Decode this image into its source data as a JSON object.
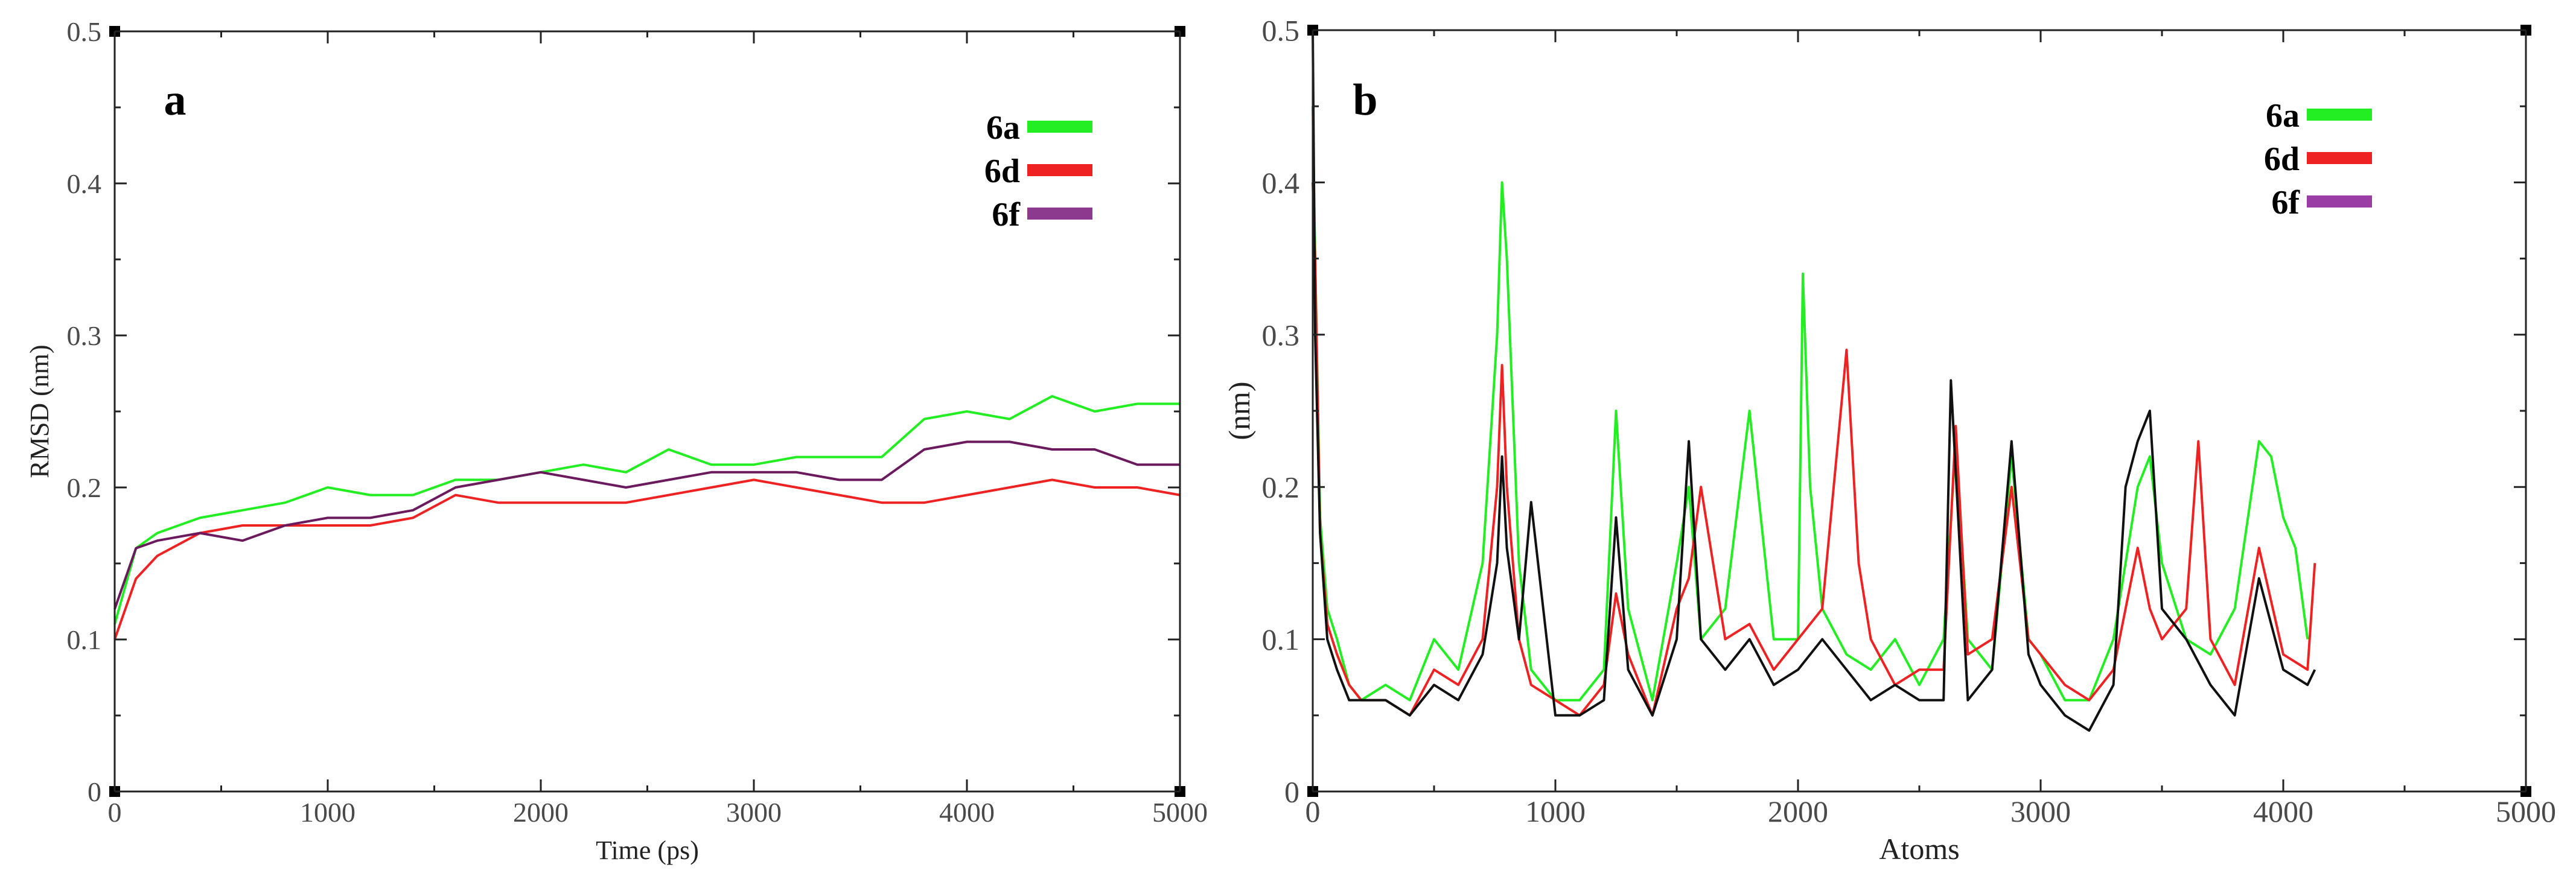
{
  "charts": [
    {
      "panel_label": "a",
      "chart_data": {
        "type": "line",
        "title": "",
        "xlabel": "Time (ps)",
        "ylabel": "RMSD (nm)",
        "xlim": [
          0,
          5000
        ],
        "ylim": [
          0,
          0.5
        ],
        "xticks": [
          0,
          1000,
          2000,
          3000,
          4000,
          5000
        ],
        "yticks": [
          0,
          0.1,
          0.2,
          0.3,
          0.4,
          0.5
        ],
        "xtick_labels": [
          "0",
          "1000",
          "2000",
          "3000",
          "4000",
          "5000"
        ],
        "ytick_labels": [
          "0",
          "0.1",
          "0.2",
          "0.3",
          "0.4",
          "0.5"
        ],
        "legend_position": "top-right",
        "series": [
          {
            "name": "6a",
            "color": "#22ee22",
            "x": [
              0,
              100,
              200,
              400,
              600,
              800,
              1000,
              1200,
              1400,
              1600,
              1800,
              2000,
              2200,
              2400,
              2600,
              2800,
              3000,
              3200,
              3400,
              3600,
              3800,
              4000,
              4200,
              4400,
              4600,
              4800,
              5000
            ],
            "y": [
              0.11,
              0.16,
              0.17,
              0.18,
              0.185,
              0.19,
              0.2,
              0.195,
              0.195,
              0.205,
              0.205,
              0.21,
              0.215,
              0.21,
              0.225,
              0.215,
              0.215,
              0.22,
              0.22,
              0.22,
              0.245,
              0.25,
              0.245,
              0.26,
              0.25,
              0.255,
              0.255
            ]
          },
          {
            "name": "6d",
            "color": "#ee2222",
            "x": [
              0,
              100,
              200,
              400,
              600,
              800,
              1000,
              1200,
              1400,
              1600,
              1800,
              2000,
              2200,
              2400,
              2600,
              2800,
              3000,
              3200,
              3400,
              3600,
              3800,
              4000,
              4200,
              4400,
              4600,
              4800,
              5000
            ],
            "y": [
              0.1,
              0.14,
              0.155,
              0.17,
              0.175,
              0.175,
              0.175,
              0.175,
              0.18,
              0.195,
              0.19,
              0.19,
              0.19,
              0.19,
              0.195,
              0.2,
              0.205,
              0.2,
              0.195,
              0.19,
              0.19,
              0.195,
              0.2,
              0.205,
              0.2,
              0.2,
              0.195
            ]
          },
          {
            "name": "6f",
            "color": "#6b1a5e",
            "x": [
              0,
              100,
              200,
              400,
              600,
              800,
              1000,
              1200,
              1400,
              1600,
              1800,
              2000,
              2200,
              2400,
              2600,
              2800,
              3000,
              3200,
              3400,
              3600,
              3800,
              4000,
              4200,
              4400,
              4600,
              4800,
              5000
            ],
            "y": [
              0.12,
              0.16,
              0.165,
              0.17,
              0.165,
              0.175,
              0.18,
              0.18,
              0.185,
              0.2,
              0.205,
              0.21,
              0.205,
              0.2,
              0.205,
              0.21,
              0.21,
              0.21,
              0.205,
              0.205,
              0.225,
              0.23,
              0.23,
              0.225,
              0.225,
              0.215,
              0.215
            ]
          }
        ]
      }
    },
    {
      "panel_label": "b",
      "chart_data": {
        "type": "line",
        "title": "",
        "xlabel": "Atoms",
        "ylabel": "(nm)",
        "xlim": [
          0,
          5000
        ],
        "ylim": [
          0,
          0.5
        ],
        "xticks": [
          0,
          1000,
          2000,
          3000,
          4000,
          5000
        ],
        "yticks": [
          0,
          0.1,
          0.2,
          0.3,
          0.4,
          0.5
        ],
        "xtick_labels": [
          "0",
          "1000",
          "2000",
          "3000",
          "4000",
          "5000"
        ],
        "ytick_labels": [
          "0",
          "0.1",
          "0.2",
          "0.3",
          "0.4",
          "0.5"
        ],
        "legend_position": "top-right",
        "series": [
          {
            "name": "6a",
            "color": "#22ee22",
            "x": [
              0,
              10,
              30,
              60,
              100,
              150,
              200,
              300,
              400,
              500,
              600,
              700,
              760,
              780,
              800,
              850,
              900,
              1000,
              1100,
              1200,
              1250,
              1300,
              1400,
              1500,
              1550,
              1600,
              1700,
              1800,
              1900,
              2000,
              2020,
              2050,
              2100,
              2200,
              2300,
              2400,
              2500,
              2600,
              2650,
              2700,
              2800,
              2880,
              2950,
              3000,
              3100,
              3200,
              3300,
              3400,
              3450,
              3500,
              3600,
              3700,
              3800,
              3900,
              3950,
              4000,
              4050,
              4100
            ],
            "y": [
              0.45,
              0.35,
              0.18,
              0.12,
              0.1,
              0.07,
              0.06,
              0.07,
              0.06,
              0.1,
              0.08,
              0.15,
              0.3,
              0.4,
              0.35,
              0.15,
              0.08,
              0.06,
              0.06,
              0.08,
              0.25,
              0.12,
              0.06,
              0.15,
              0.2,
              0.1,
              0.12,
              0.25,
              0.1,
              0.1,
              0.34,
              0.2,
              0.12,
              0.09,
              0.08,
              0.1,
              0.07,
              0.1,
              0.23,
              0.1,
              0.08,
              0.22,
              0.1,
              0.09,
              0.06,
              0.06,
              0.1,
              0.2,
              0.22,
              0.15,
              0.1,
              0.09,
              0.12,
              0.23,
              0.22,
              0.18,
              0.16,
              0.1
            ]
          },
          {
            "name": "6d",
            "color": "#ee2222",
            "x": [
              0,
              10,
              30,
              60,
              100,
              150,
              200,
              300,
              400,
              500,
              600,
              700,
              760,
              780,
              800,
              850,
              900,
              1000,
              1100,
              1200,
              1250,
              1300,
              1400,
              1500,
              1550,
              1600,
              1700,
              1800,
              1900,
              2000,
              2100,
              2200,
              2250,
              2300,
              2400,
              2500,
              2600,
              2650,
              2700,
              2800,
              2880,
              2950,
              3000,
              3100,
              3200,
              3300,
              3400,
              3450,
              3500,
              3600,
              3650,
              3700,
              3800,
              3900,
              4000,
              4100,
              4130
            ],
            "y": [
              0.4,
              0.35,
              0.17,
              0.11,
              0.09,
              0.07,
              0.06,
              0.06,
              0.05,
              0.08,
              0.07,
              0.1,
              0.2,
              0.28,
              0.2,
              0.1,
              0.07,
              0.06,
              0.05,
              0.07,
              0.13,
              0.09,
              0.05,
              0.12,
              0.14,
              0.2,
              0.1,
              0.11,
              0.08,
              0.1,
              0.12,
              0.29,
              0.15,
              0.1,
              0.07,
              0.08,
              0.08,
              0.24,
              0.09,
              0.1,
              0.2,
              0.1,
              0.09,
              0.07,
              0.06,
              0.08,
              0.16,
              0.12,
              0.1,
              0.12,
              0.23,
              0.1,
              0.07,
              0.16,
              0.09,
              0.08,
              0.15
            ]
          },
          {
            "name": "6f",
            "color": "#111111",
            "x": [
              0,
              10,
              30,
              60,
              100,
              150,
              200,
              300,
              400,
              500,
              600,
              700,
              760,
              780,
              800,
              850,
              900,
              1000,
              1100,
              1200,
              1250,
              1300,
              1400,
              1500,
              1550,
              1600,
              1700,
              1800,
              1900,
              2000,
              2100,
              2200,
              2300,
              2400,
              2500,
              2600,
              2630,
              2700,
              2800,
              2880,
              2950,
              3000,
              3100,
              3200,
              3300,
              3350,
              3400,
              3450,
              3500,
              3600,
              3700,
              3800,
              3900,
              4000,
              4100,
              4130
            ],
            "y": [
              0.5,
              0.3,
              0.17,
              0.1,
              0.08,
              0.06,
              0.06,
              0.06,
              0.05,
              0.07,
              0.06,
              0.09,
              0.15,
              0.22,
              0.16,
              0.1,
              0.19,
              0.05,
              0.05,
              0.06,
              0.18,
              0.08,
              0.05,
              0.1,
              0.23,
              0.1,
              0.08,
              0.1,
              0.07,
              0.08,
              0.1,
              0.08,
              0.06,
              0.07,
              0.06,
              0.06,
              0.27,
              0.06,
              0.08,
              0.23,
              0.09,
              0.07,
              0.05,
              0.04,
              0.07,
              0.2,
              0.23,
              0.25,
              0.12,
              0.1,
              0.07,
              0.05,
              0.14,
              0.08,
              0.07,
              0.08
            ]
          }
        ]
      }
    }
  ]
}
